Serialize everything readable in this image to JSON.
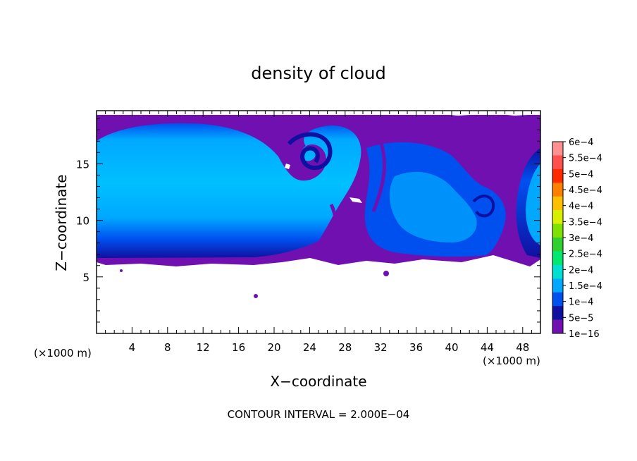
{
  "chart_data": {
    "type": "heatmap",
    "title": "density of cloud",
    "xlabel": "X−coordinate",
    "ylabel": "Z−coordinate",
    "x_unit_left": "(×1000 m)",
    "x_unit_right": "(×1000 m)",
    "xlim": [
      0,
      50
    ],
    "ylim": [
      0,
      19.7
    ],
    "x_ticks": [
      4,
      8,
      12,
      16,
      20,
      24,
      28,
      32,
      36,
      40,
      44,
      48
    ],
    "y_ticks": [
      5,
      10,
      15
    ],
    "colorbar": {
      "labels": [
        "6e−4",
        "5.5e−4",
        "5e−4",
        "4.5e−4",
        "4e−4",
        "3.5e−4",
        "3e−4",
        "2.5e−4",
        "2e−4",
        "1.5e−4",
        "1e−4",
        "5e−5",
        "1e−16"
      ],
      "colors": [
        "#ff9090",
        "#ff5050",
        "#ff2a00",
        "#ff8000",
        "#ffc000",
        "#d8f000",
        "#80e000",
        "#30d030",
        "#00e870",
        "#00e0d0",
        "#00a8ff",
        "#0050f0",
        "#1010a0",
        "#7010b0"
      ]
    },
    "footer": "CONTOUR INTERVAL = 2.000E−04",
    "colors": {
      "purple": "#7010b0",
      "deep_blue": "#1010a0",
      "blue": "#0050f0",
      "light_blue": "#00a8ff",
      "pale_blue": "#00c0ff"
    }
  }
}
